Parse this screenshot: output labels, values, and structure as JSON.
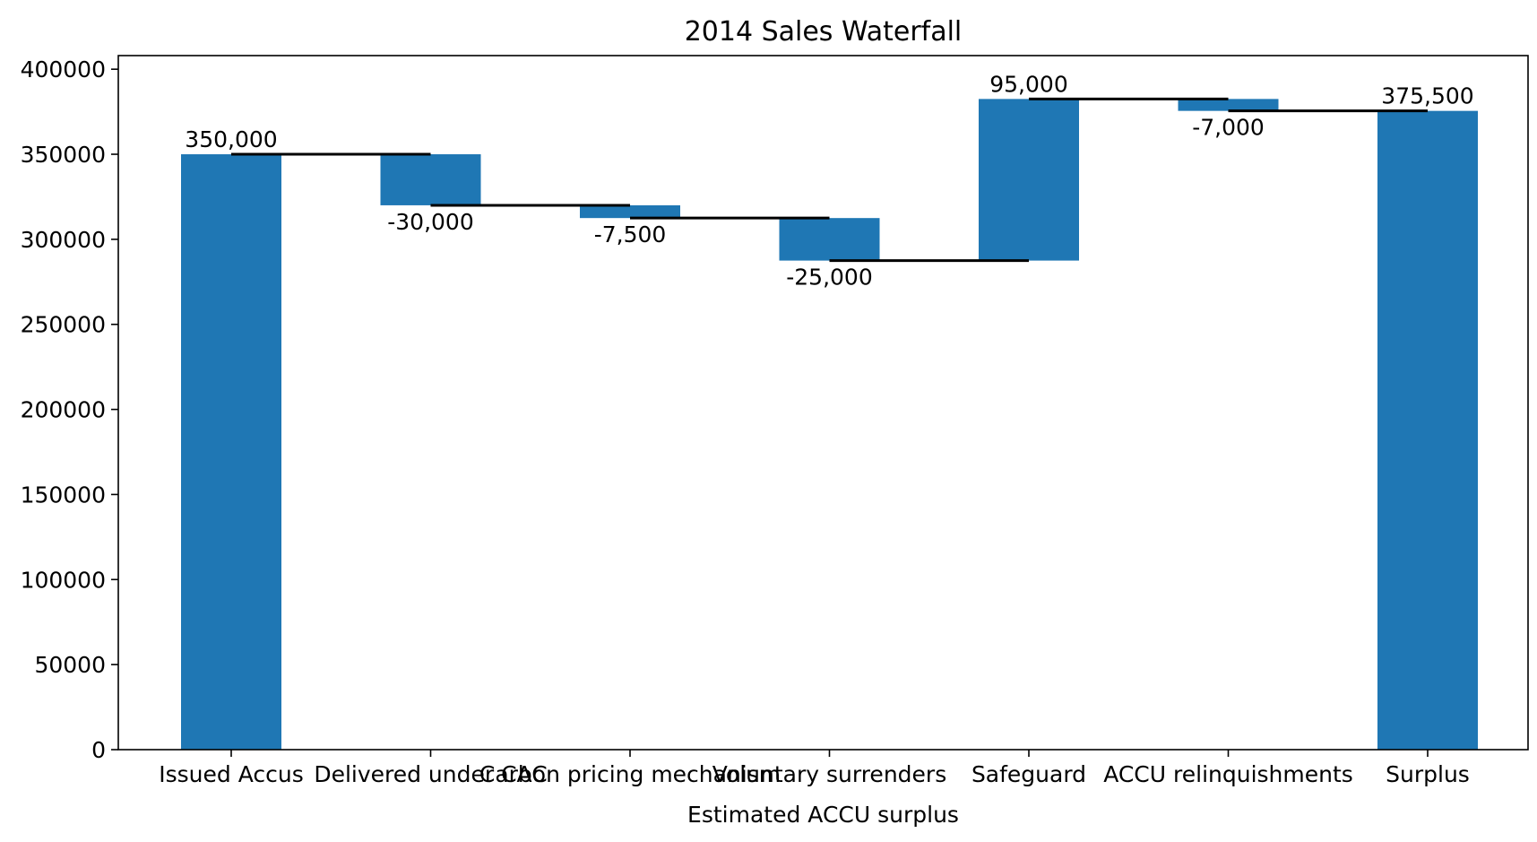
{
  "chart_data": {
    "type": "bar",
    "subtype": "waterfall",
    "title": "2014 Sales Waterfall",
    "xlabel": "Estimated ACCU surplus",
    "ylabel": "",
    "categories": [
      "Issued Accus",
      "Delivered under CAC",
      "Carbon pricing mechanism",
      "Voluntary surrenders",
      "Safeguard",
      "ACCU relinquishments",
      "Surplus"
    ],
    "values": [
      350000,
      -30000,
      -7500,
      -25000,
      95000,
      -7000,
      375500
    ],
    "bar_labels": [
      "350,000",
      "-30,000",
      "-7,500",
      "-25,000",
      "95,000",
      "-7,000",
      "375,500"
    ],
    "total_indices": [
      0,
      6
    ],
    "ylim": [
      0,
      408000
    ],
    "yticks": [
      0,
      50000,
      100000,
      150000,
      200000,
      250000,
      300000,
      350000,
      400000
    ],
    "ytick_labels": [
      "0",
      "50000",
      "100000",
      "150000",
      "200000",
      "250000",
      "300000",
      "350000",
      "400000"
    ],
    "connectors": true,
    "grid": false,
    "colors": {
      "bar": "#1f77b4",
      "connector": "#000000"
    }
  }
}
